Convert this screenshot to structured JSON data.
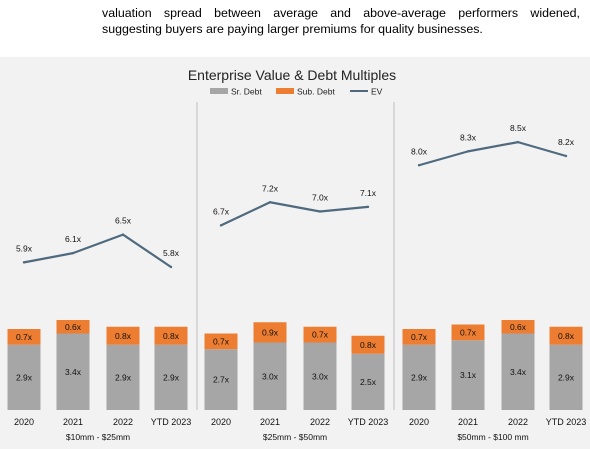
{
  "intro_text": "valuation spread between average and above-average performers widened, suggesting buyers are paying larger premiums for quality businesses.",
  "colors": {
    "sr_debt": "#a6a6a6",
    "sub_debt": "#ed7d31",
    "ev": "#4f6a7f",
    "background": "#f2f2f2",
    "divider": "#bdbdbd"
  },
  "chart_data": {
    "type": "bar",
    "title": "Enterprise Value & Debt Multiples",
    "legend": [
      "Sr. Debt",
      "Sub. Debt",
      "EV"
    ],
    "legend_position": "top-center",
    "ev_label_suffix": "x",
    "groups": [
      {
        "label": "$10mm - $25mm",
        "categories": [
          "2020",
          "2021",
          "2022",
          "YTD 2023"
        ],
        "series": [
          {
            "name": "Sr. Debt",
            "values": [
              2.9,
              3.4,
              2.9,
              2.9
            ],
            "labels": [
              "2.9x",
              "3.4x",
              "2.9x",
              "2.9x"
            ]
          },
          {
            "name": "Sub. Debt",
            "values": [
              0.7,
              0.6,
              0.8,
              0.8
            ],
            "labels": [
              "0.7x",
              "0.6x",
              "0.8x",
              "0.8x"
            ]
          },
          {
            "name": "EV",
            "values": [
              5.9,
              6.1,
              6.5,
              5.8
            ],
            "labels": [
              "5.9x",
              "6.1x",
              "6.5x",
              "5.8x"
            ]
          }
        ]
      },
      {
        "label": "$25mm - $50mm",
        "categories": [
          "2020",
          "2021",
          "2022",
          "YTD 2023"
        ],
        "series": [
          {
            "name": "Sr. Debt",
            "values": [
              2.7,
              3.0,
              3.0,
              2.5
            ],
            "labels": [
              "2.7x",
              "3.0x",
              "3.0x",
              "2.5x"
            ]
          },
          {
            "name": "Sub. Debt",
            "values": [
              0.7,
              0.9,
              0.7,
              0.8
            ],
            "labels": [
              "0.7x",
              "0.9x",
              "0.7x",
              "0.8x"
            ]
          },
          {
            "name": "EV",
            "values": [
              6.7,
              7.2,
              7.0,
              7.1
            ],
            "labels": [
              "6.7x",
              "7.2x",
              "7.0x",
              "7.1x"
            ]
          }
        ]
      },
      {
        "label": "$50mm - $100 mm",
        "categories": [
          "2020",
          "2021",
          "2022",
          "YTD 2023"
        ],
        "series": [
          {
            "name": "Sr. Debt",
            "values": [
              2.9,
              3.1,
              3.4,
              2.9
            ],
            "labels": [
              "2.9x",
              "3.1x",
              "3.4x",
              "2.9x"
            ]
          },
          {
            "name": "Sub. Debt",
            "values": [
              0.7,
              0.7,
              0.6,
              0.8
            ],
            "labels": [
              "0.7x",
              "0.7x",
              "0.6x",
              "0.8x"
            ]
          },
          {
            "name": "EV",
            "values": [
              8.0,
              8.3,
              8.5,
              8.2
            ],
            "labels": [
              "8.0x",
              "8.3x",
              "8.5x",
              "8.2x"
            ]
          }
        ]
      }
    ]
  }
}
